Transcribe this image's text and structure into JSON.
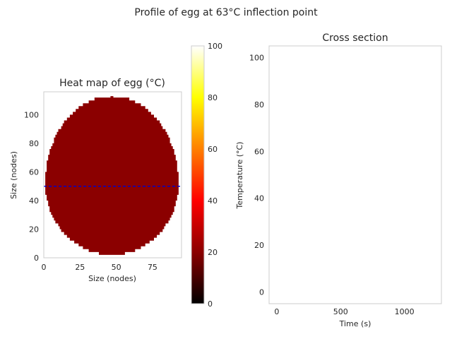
{
  "figure": {
    "suptitle": "Profile of egg at 63°C inflection point"
  },
  "chart_data": [
    {
      "type": "heatmap",
      "title": "Heat map of egg (°C)",
      "xlabel": "Size (nodes)",
      "ylabel": "Size (nodes)",
      "xlim": [
        0,
        95
      ],
      "ylim": [
        0,
        116
      ],
      "xticks": [
        0,
        25,
        50,
        75
      ],
      "yticks": [
        0,
        20,
        40,
        60,
        80,
        100
      ],
      "grid": false,
      "colormap": "hot",
      "egg_shape": {
        "center_x": 47,
        "x_range": [
          2,
          94
        ],
        "y_range": [
          2,
          113
        ],
        "widest_at_y": 52,
        "uniform_temperature_c": 20,
        "fill_color": "#8b0000"
      },
      "cross_section_line": {
        "y": 50,
        "x_range": [
          0,
          95
        ],
        "style": "dashed",
        "color": "#0000cc"
      },
      "colorbar": {
        "range": [
          0,
          100
        ],
        "ticks": [
          0,
          20,
          40,
          60,
          80,
          100
        ],
        "stops": [
          "#000000",
          "#8b0000",
          "#ff0000",
          "#ff7f00",
          "#ffff00",
          "#ffffff"
        ]
      }
    },
    {
      "type": "line",
      "title": "Cross section",
      "xlabel": "Time (s)",
      "ylabel": "Temperature (°C)",
      "xlim": [
        -60,
        1290
      ],
      "ylim": [
        -5,
        105
      ],
      "xticks": [
        0,
        500,
        1000
      ],
      "yticks": [
        0,
        20,
        40,
        60,
        80,
        100
      ],
      "grid": false,
      "series": []
    }
  ]
}
